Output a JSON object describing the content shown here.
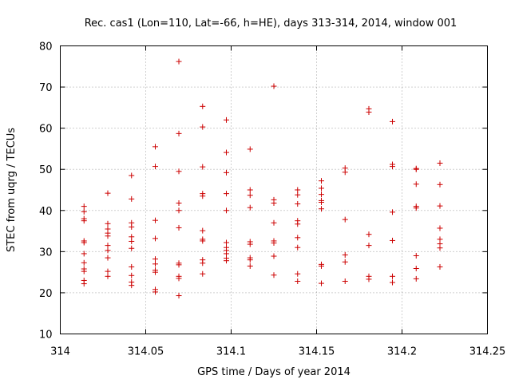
{
  "chart_data": {
    "type": "scatter",
    "title": "Rec. cas1 (Lon=110, Lat=-66, h=HE), days 313-314, 2014, window 001",
    "xlabel": "GPS time / Days of year 2014",
    "ylabel": "STEC from uqrg / TECUs",
    "xlim": [
      314,
      314.25
    ],
    "ylim": [
      10,
      80
    ],
    "x_ticks": [
      "314",
      "314.05",
      "314.1",
      "314.15",
      "314.2",
      "314.25"
    ],
    "y_ticks": [
      "10",
      "20",
      "30",
      "40",
      "50",
      "60",
      "70",
      "80"
    ],
    "grid": true,
    "marker": "+",
    "series_color": "#cc0000",
    "series": [
      {
        "x": 314.0139,
        "values": [
          22.2,
          23.0,
          25.2,
          25.8,
          27.3,
          29.5,
          32.2,
          32.6,
          37.5,
          38.0,
          39.7,
          41.0
        ]
      },
      {
        "x": 314.0278,
        "values": [
          24.0,
          25.2,
          28.5,
          30.3,
          31.5,
          33.8,
          34.5,
          35.5,
          36.8,
          44.2
        ]
      },
      {
        "x": 314.0417,
        "values": [
          21.8,
          22.6,
          24.2,
          26.3,
          30.8,
          32.5,
          33.6,
          36.0,
          37.0,
          42.8,
          48.5
        ]
      },
      {
        "x": 314.0556,
        "values": [
          20.2,
          20.8,
          25.0,
          25.5,
          27.0,
          28.2,
          33.2,
          37.6,
          50.7,
          55.5
        ]
      },
      {
        "x": 314.0694,
        "values": [
          19.3,
          23.5,
          24.0,
          26.8,
          27.2,
          35.8,
          40.0,
          41.8,
          49.5,
          58.7,
          76.2
        ]
      },
      {
        "x": 314.0833,
        "values": [
          24.6,
          27.2,
          28.0,
          32.6,
          33.0,
          35.1,
          43.5,
          44.1,
          50.6,
          60.3,
          65.3
        ]
      },
      {
        "x": 314.0972,
        "values": [
          27.8,
          28.4,
          29.5,
          30.3,
          31.0,
          32.2,
          40.0,
          44.1,
          49.2,
          54.1,
          62.0
        ]
      },
      {
        "x": 314.1111,
        "values": [
          26.5,
          28.0,
          28.5,
          31.8,
          32.4,
          40.7,
          43.7,
          45.0,
          54.9
        ]
      },
      {
        "x": 314.125,
        "values": [
          24.3,
          28.9,
          32.1,
          32.6,
          37.0,
          41.8,
          42.6,
          70.2
        ]
      },
      {
        "x": 314.1389,
        "values": [
          22.8,
          24.6,
          31.0,
          33.4,
          36.7,
          37.5,
          41.6,
          43.8,
          45.0
        ]
      },
      {
        "x": 314.1528,
        "values": [
          22.3,
          26.5,
          26.9,
          40.4,
          42.0,
          42.4,
          43.9,
          45.4,
          47.2
        ]
      },
      {
        "x": 314.1667,
        "values": [
          22.8,
          27.5,
          29.2,
          37.8,
          49.3,
          50.3
        ]
      },
      {
        "x": 314.1806,
        "values": [
          23.3,
          24.0,
          31.5,
          34.2,
          63.9,
          64.7
        ]
      },
      {
        "x": 314.1944,
        "values": [
          22.5,
          24.0,
          32.7,
          39.6,
          50.7,
          51.2,
          61.6
        ]
      },
      {
        "x": 314.2083,
        "values": [
          23.4,
          25.9,
          29.0,
          40.6,
          41.0,
          46.4,
          50.0,
          50.2
        ]
      },
      {
        "x": 314.2222,
        "values": [
          26.3,
          30.9,
          31.9,
          33.0,
          35.7,
          41.1,
          46.3,
          51.5
        ]
      }
    ]
  }
}
